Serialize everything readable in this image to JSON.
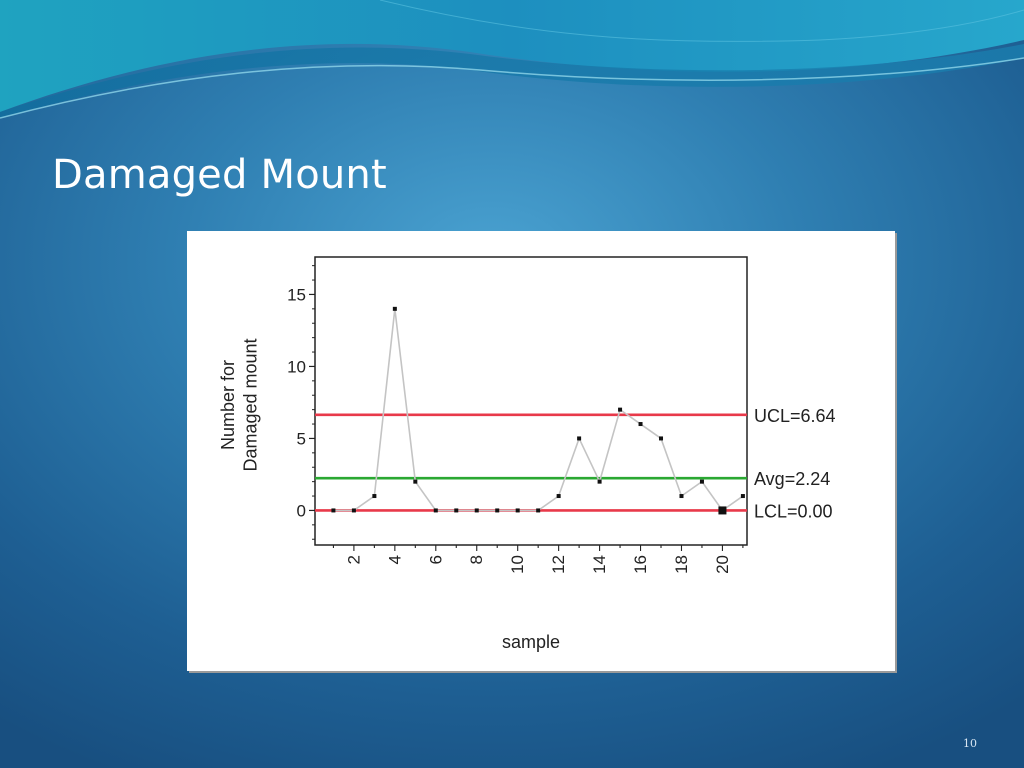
{
  "slide": {
    "title": "Damaged Mount",
    "page_number": "10"
  },
  "colors": {
    "limit_line": "#e8394a",
    "average_line": "#2aa832",
    "data_line": "#c4c4c4",
    "marker": "#111111"
  },
  "chart_data": {
    "type": "line",
    "xlabel": "sample",
    "ylabel": [
      "Number for",
      "Damaged mount"
    ],
    "x": [
      1,
      2,
      3,
      4,
      5,
      6,
      7,
      8,
      9,
      10,
      11,
      12,
      13,
      14,
      15,
      16,
      17,
      18,
      19,
      20,
      21
    ],
    "series": [
      {
        "values": [
          0,
          0,
          1,
          14,
          2,
          0,
          0,
          0,
          0,
          0,
          0,
          1,
          5,
          2,
          7,
          6,
          5,
          1,
          2,
          0,
          1
        ]
      }
    ],
    "highlighted_point": 20,
    "xlim": [
      0.1,
      21.2
    ],
    "ylim": [
      -2.4,
      17.6
    ],
    "x_ticks": [
      2,
      4,
      6,
      8,
      10,
      12,
      14,
      16,
      18,
      20
    ],
    "y_ticks": [
      0,
      5,
      10,
      15
    ],
    "control_lines": [
      {
        "label": "UCL=6.64",
        "value": 6.64,
        "kind": "limit"
      },
      {
        "label": "Avg=2.24",
        "value": 2.24,
        "kind": "average"
      },
      {
        "label": "LCL=0.00",
        "value": 0.0,
        "kind": "limit"
      }
    ],
    "grid": false,
    "legend": "none"
  }
}
